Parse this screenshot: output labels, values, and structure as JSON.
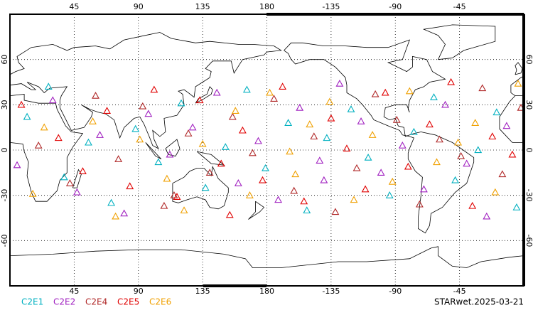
{
  "chart_data": {
    "type": "scatter",
    "title": "STARwet.2025-03-21",
    "xlim": [
      0,
      360
    ],
    "ylim": [
      -90,
      90
    ],
    "xticks": [
      45,
      90,
      135,
      180,
      {
        "value": 225,
        "label": "-135"
      },
      {
        "value": 270,
        "label": "-90"
      },
      {
        "value": 315,
        "label": "-45"
      }
    ],
    "yticks": [
      -60,
      -30,
      0,
      30,
      60
    ],
    "grid": true,
    "series": [
      {
        "name": "C2E1",
        "color": "#00b0c0",
        "lon": [
          12,
          38,
          55,
          71,
          88,
          104,
          120,
          137,
          151,
          166,
          179,
          195,
          208,
          222,
          239,
          251,
          266,
          283,
          297,
          312,
          328,
          341,
          355,
          27
        ],
        "lat": [
          22,
          -18,
          5,
          -35,
          14,
          -8,
          31,
          -25,
          2,
          40,
          -12,
          18,
          -40,
          8,
          27,
          -5,
          -30,
          12,
          35,
          -20,
          0,
          25,
          -38,
          42
        ]
      },
      {
        "name": "C2E2",
        "color": "#a020c0",
        "lon": [
          5,
          30,
          47,
          63,
          80,
          97,
          112,
          128,
          145,
          160,
          174,
          188,
          203,
          217,
          231,
          246,
          260,
          275,
          290,
          305,
          320,
          334,
          348,
          220
        ],
        "lat": [
          -10,
          33,
          -28,
          10,
          -42,
          24,
          -3,
          15,
          38,
          -22,
          6,
          -33,
          28,
          -7,
          44,
          19,
          -15,
          3,
          -26,
          30,
          -9,
          -44,
          16,
          -20
        ]
      },
      {
        "name": "C2E4",
        "color": "#b02828",
        "lon": [
          20,
          42,
          60,
          76,
          93,
          108,
          125,
          140,
          156,
          170,
          185,
          199,
          213,
          228,
          243,
          256,
          271,
          287,
          301,
          316,
          331,
          345,
          358,
          115
        ],
        "lat": [
          3,
          -22,
          36,
          -6,
          29,
          -37,
          11,
          -15,
          22,
          -2,
          34,
          -27,
          9,
          -41,
          -12,
          37,
          20,
          -36,
          7,
          -4,
          41,
          -16,
          28,
          -30
        ]
      },
      {
        "name": "C2E5",
        "color": "#e00000",
        "lon": [
          8,
          34,
          51,
          68,
          84,
          101,
          117,
          133,
          148,
          163,
          177,
          191,
          206,
          225,
          236,
          249,
          263,
          279,
          294,
          309,
          324,
          338,
          352,
          154
        ],
        "lat": [
          30,
          8,
          -14,
          26,
          -24,
          40,
          -31,
          33,
          -9,
          13,
          -20,
          42,
          -34,
          21,
          1,
          -26,
          38,
          -11,
          17,
          45,
          -37,
          9,
          -3,
          -43
        ]
      },
      {
        "name": "C2E6",
        "color": "#f0a000",
        "lon": [
          16,
          24,
          58,
          74,
          91,
          110,
          122,
          135,
          158,
          168,
          182,
          196,
          210,
          224,
          241,
          254,
          268,
          280,
          299,
          314,
          326,
          340,
          356,
          200
        ],
        "lat": [
          -29,
          15,
          19,
          -44,
          7,
          -19,
          -40,
          4,
          26,
          -30,
          38,
          -1,
          17,
          32,
          -33,
          10,
          -21,
          39,
          -8,
          5,
          18,
          -28,
          44,
          -16
        ]
      }
    ]
  }
}
